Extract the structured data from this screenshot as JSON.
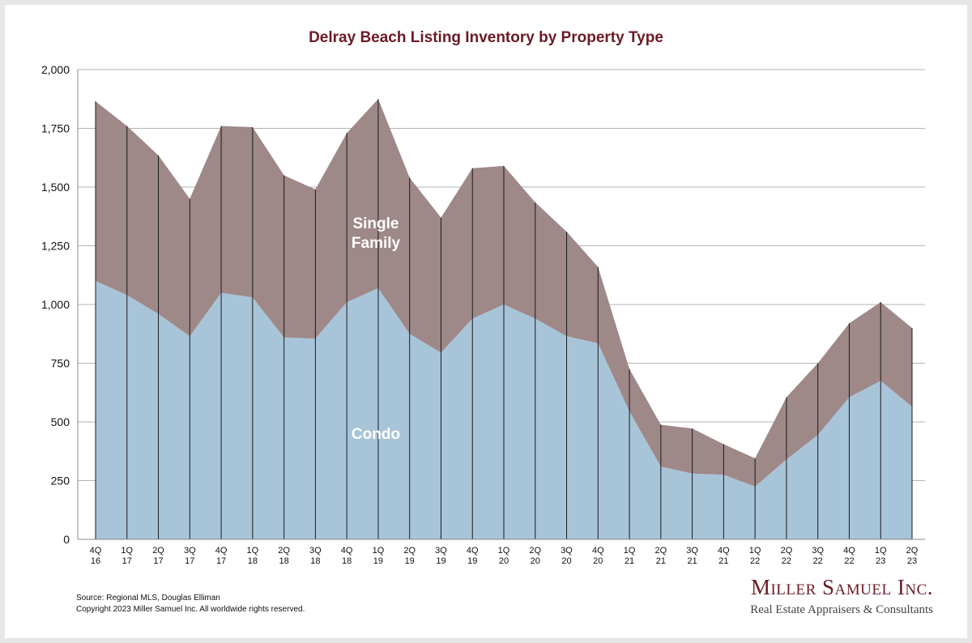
{
  "chart_data": {
    "type": "area",
    "title": "Delray Beach Listing Inventory by Property Type",
    "categories": [
      [
        "4Q",
        "16"
      ],
      [
        "1Q",
        "17"
      ],
      [
        "2Q",
        "17"
      ],
      [
        "3Q",
        "17"
      ],
      [
        "4Q",
        "17"
      ],
      [
        "1Q",
        "18"
      ],
      [
        "2Q",
        "18"
      ],
      [
        "3Q",
        "18"
      ],
      [
        "4Q",
        "18"
      ],
      [
        "1Q",
        "19"
      ],
      [
        "2Q",
        "19"
      ],
      [
        "3Q",
        "19"
      ],
      [
        "4Q",
        "19"
      ],
      [
        "1Q",
        "20"
      ],
      [
        "2Q",
        "20"
      ],
      [
        "3Q",
        "20"
      ],
      [
        "4Q",
        "20"
      ],
      [
        "1Q",
        "21"
      ],
      [
        "2Q",
        "21"
      ],
      [
        "3Q",
        "21"
      ],
      [
        "4Q",
        "21"
      ],
      [
        "1Q",
        "22"
      ],
      [
        "2Q",
        "22"
      ],
      [
        "3Q",
        "22"
      ],
      [
        "4Q",
        "22"
      ],
      [
        "1Q",
        "23"
      ],
      [
        "2Q",
        "23"
      ]
    ],
    "stacked": true,
    "series": [
      {
        "name": "Condo",
        "color": "#a8c4d9",
        "values": [
          1100,
          1040,
          960,
          865,
          1050,
          1030,
          860,
          855,
          1010,
          1070,
          875,
          795,
          940,
          1000,
          940,
          865,
          835,
          545,
          310,
          280,
          275,
          225,
          340,
          445,
          605,
          675,
          565
        ]
      },
      {
        "name": "Single Family",
        "color": "#9e8888",
        "values": [
          765,
          720,
          675,
          585,
          710,
          725,
          690,
          635,
          720,
          805,
          665,
          575,
          640,
          590,
          495,
          445,
          325,
          180,
          178,
          192,
          130,
          120,
          265,
          305,
          315,
          335,
          335
        ]
      }
    ],
    "series_labels": [
      "Single",
      "Family"
    ],
    "ylim": [
      0,
      2000
    ],
    "yticks": [
      {
        "value": 0,
        "label": "0"
      },
      {
        "value": 250,
        "label": "250"
      },
      {
        "value": 500,
        "label": "500"
      },
      {
        "value": 750,
        "label": "750"
      },
      {
        "value": 1000,
        "label": "1,000"
      },
      {
        "value": 1250,
        "label": "1,250"
      },
      {
        "value": 1500,
        "label": "1,500"
      },
      {
        "value": 1750,
        "label": "1,750"
      },
      {
        "value": 2000,
        "label": "2,000"
      }
    ],
    "grid": true,
    "xlabel": "",
    "ylabel": ""
  },
  "footer": {
    "source": "Source: Regional MLS, Douglas Elliman",
    "copyright": "Copyright 2023 Miller Samuel Inc.  All worldwide rights reserved."
  },
  "logo": {
    "name": "Miller Samuel Inc.",
    "tagline": "Real Estate Appraisers & Consultants"
  }
}
